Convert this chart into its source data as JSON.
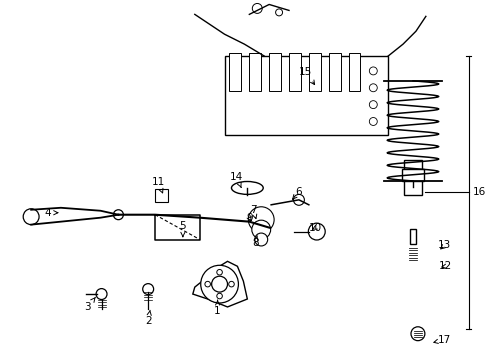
{
  "background_color": "#ffffff",
  "line_color": "#000000",
  "fig_width": 4.89,
  "fig_height": 3.6,
  "dpi": 100,
  "labels": [
    [
      "1",
      218,
      312,
      218,
      298
    ],
    [
      "2",
      148,
      322,
      150,
      311
    ],
    [
      "3",
      87,
      308,
      95,
      298
    ],
    [
      "4",
      47,
      213,
      58,
      213
    ],
    [
      "5",
      183,
      226,
      183,
      238
    ],
    [
      "6",
      300,
      192,
      293,
      200
    ],
    [
      "7",
      254,
      210,
      257,
      220
    ],
    [
      "8",
      256,
      244,
      258,
      236
    ],
    [
      "9",
      250,
      218,
      254,
      224
    ],
    [
      "10",
      317,
      228,
      313,
      230
    ],
    [
      "11",
      158,
      182,
      163,
      194
    ],
    [
      "12",
      448,
      267,
      443,
      268
    ],
    [
      "13",
      447,
      246,
      440,
      252
    ],
    [
      "14",
      237,
      177,
      242,
      188
    ],
    [
      "15",
      307,
      71,
      318,
      87
    ],
    [
      "17",
      447,
      341,
      435,
      344
    ]
  ]
}
